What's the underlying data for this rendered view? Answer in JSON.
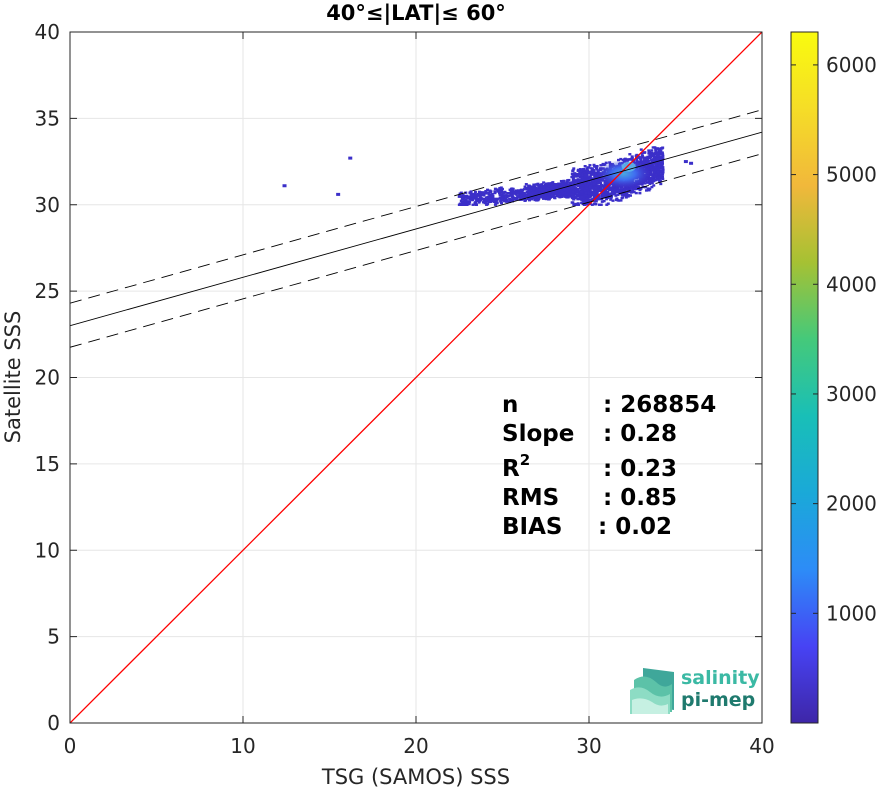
{
  "chart_data": {
    "type": "scatter",
    "title": "40°≤|LAT|≤ 60°",
    "xlabel": "TSG (SAMOS) SSS",
    "ylabel": "Satellite SSS",
    "xlim": [
      0,
      40
    ],
    "ylim": [
      0,
      40
    ],
    "xticks": [
      0,
      10,
      20,
      30,
      40
    ],
    "yticks": [
      0,
      5,
      10,
      15,
      20,
      25,
      30,
      35,
      40
    ],
    "grid": true,
    "identity_line": {
      "color": "#ff0000",
      "from": [
        0,
        0
      ],
      "to": [
        40,
        40
      ]
    },
    "regression": {
      "intercept": 23.0,
      "slope": 0.28,
      "upper_intercept": 24.3,
      "lower_intercept": 21.75,
      "color": "#000000"
    },
    "density_cloud": {
      "x_range": [
        22.5,
        34.3
      ],
      "y_range": [
        30.0,
        34.1
      ],
      "core": [
        32.0,
        31.8
      ],
      "outliers": [
        [
          16.2,
          32.7
        ],
        [
          12.4,
          31.1
        ],
        [
          15.5,
          30.6
        ],
        [
          35.6,
          32.5
        ],
        [
          35.9,
          32.4
        ]
      ]
    },
    "colorbar": {
      "min": 0,
      "max": 6300,
      "ticks": [
        1000,
        2000,
        3000,
        4000,
        5000,
        6000
      ],
      "colormap": [
        "#3e26a8",
        "#4743f4",
        "#2d8cf7",
        "#1aa9d8",
        "#19bfb7",
        "#45c97a",
        "#a6c133",
        "#f1b83b",
        "#f5dd27",
        "#f9fb0e"
      ]
    },
    "stats": {
      "n_label": "n",
      "n_value": ": 268854",
      "slope_label": "Slope",
      "slope_value": ": 0.28",
      "r2_label": "R",
      "r2_sup": "2",
      "r2_value": ": 0.23",
      "rms_label": "RMS",
      "rms_value": ": 0.85",
      "bias_label": "BIAS",
      "bias_value": ": 0.02"
    }
  },
  "logo": {
    "line1": "salinity",
    "line2": "pi-mep",
    "color1": "#3bb9a4",
    "color2": "#1f7a6e"
  }
}
